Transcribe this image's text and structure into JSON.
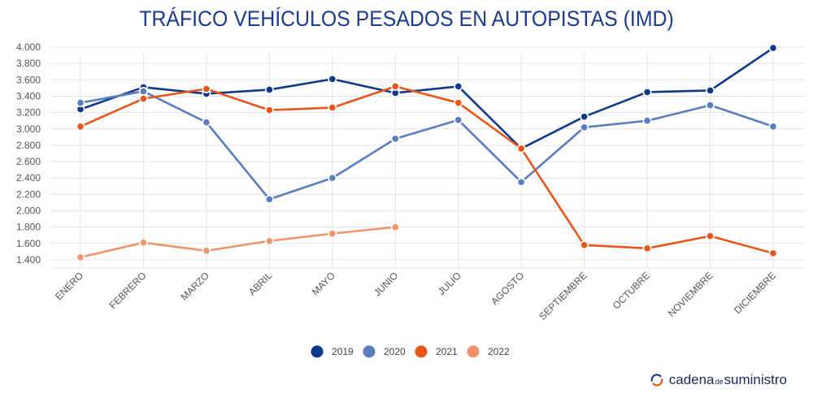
{
  "title": "TRÁFICO VEHÍCULOS PESADOS EN AUTOPISTAS (IMD)",
  "brand": {
    "part1": "cadena",
    "part2": "de",
    "part3": "suministro"
  },
  "chart_data": {
    "type": "line",
    "title": "TRÁFICO VEHÍCULOS PESADOS EN AUTOPISTAS (IMD)",
    "categories": [
      "ENERO",
      "FEBRERO",
      "MARZO",
      "ABRIL",
      "MAYO",
      "JUNIO",
      "JULIO",
      "AGOSTO",
      "SEPTIEMBRE",
      "OCTUBRE",
      "NOVIEMBRE",
      "DICIEMBRE"
    ],
    "y_ticks": [
      "4.000",
      "3.800",
      "3.600",
      "3.400",
      "3.200",
      "3.000",
      "2.800",
      "2.600",
      "2.400",
      "2.200",
      "2.000",
      "1.800",
      "1.600",
      "1.400"
    ],
    "ylim": [
      1300,
      4100
    ],
    "grid": true,
    "legend_position": "bottom",
    "series": [
      {
        "name": "2019",
        "color": "#0f3a8c",
        "values": [
          3240,
          3510,
          3430,
          3480,
          3610,
          3440,
          3520,
          2760,
          3150,
          3450,
          3470,
          3990
        ]
      },
      {
        "name": "2020",
        "color": "#5a7dbf",
        "values": [
          3320,
          3460,
          3080,
          2140,
          2400,
          2880,
          3110,
          2350,
          3020,
          3100,
          3290,
          3030
        ]
      },
      {
        "name": "2021",
        "color": "#e8561a",
        "values": [
          3030,
          3370,
          3490,
          3230,
          3260,
          3520,
          3320,
          2760,
          1580,
          1540,
          1690,
          1480
        ]
      },
      {
        "name": "2022",
        "color": "#f0956a",
        "values": [
          1430,
          1610,
          1510,
          1630,
          1720,
          1800,
          null,
          null,
          null,
          null,
          null,
          null
        ]
      }
    ]
  }
}
